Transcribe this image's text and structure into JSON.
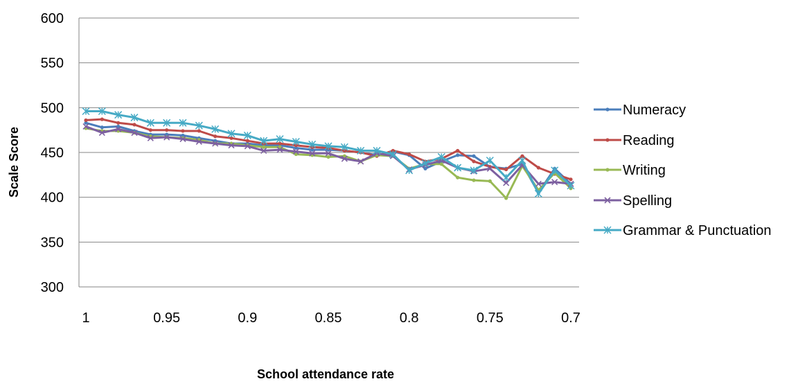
{
  "chart_data": {
    "type": "line",
    "xlabel": "School attendance rate",
    "ylabel": "Scale Score",
    "ylim": [
      300,
      600
    ],
    "yticks": [
      300,
      350,
      400,
      450,
      500,
      550,
      600
    ],
    "xlim": [
      1.0,
      0.7
    ],
    "xticks": [
      "1",
      "0.95",
      "0.9",
      "0.85",
      "0.8",
      "0.75",
      "0.7"
    ],
    "grid": "horizontal",
    "legend_position": "right",
    "x": [
      1.0,
      0.99,
      0.98,
      0.97,
      0.96,
      0.95,
      0.94,
      0.93,
      0.92,
      0.91,
      0.9,
      0.89,
      0.88,
      0.87,
      0.86,
      0.85,
      0.84,
      0.83,
      0.82,
      0.81,
      0.8,
      0.79,
      0.78,
      0.77,
      0.76,
      0.75,
      0.74,
      0.73,
      0.72,
      0.71,
      0.7
    ],
    "series": [
      {
        "name": "Numeracy",
        "color": "#4A7EBB",
        "marker": "dot",
        "values": [
          483,
          478,
          479,
          474,
          470,
          470,
          469,
          466,
          463,
          460,
          460,
          458,
          458,
          455,
          453,
          453,
          452,
          450,
          447,
          451,
          447,
          432,
          440,
          447,
          446,
          434,
          432,
          437,
          405,
          432,
          415
        ]
      },
      {
        "name": "Reading",
        "color": "#BE4B48",
        "marker": "dot",
        "values": [
          486,
          487,
          483,
          481,
          475,
          475,
          474,
          474,
          468,
          466,
          463,
          460,
          460,
          458,
          456,
          455,
          452,
          450,
          446,
          452,
          448,
          440,
          443,
          452,
          440,
          434,
          431,
          446,
          433,
          426,
          420
        ]
      },
      {
        "name": "Writing",
        "color": "#98B954",
        "marker": "dot",
        "values": [
          477,
          474,
          474,
          472,
          468,
          467,
          466,
          464,
          460,
          460,
          458,
          456,
          456,
          448,
          447,
          445,
          446,
          440,
          447,
          446,
          432,
          437,
          437,
          422,
          419,
          418,
          399,
          435,
          408,
          427,
          410
        ]
      },
      {
        "name": "Spelling",
        "color": "#7D60A0",
        "marker": "x",
        "values": [
          479,
          472,
          476,
          472,
          466,
          467,
          465,
          462,
          460,
          458,
          457,
          452,
          453,
          451,
          449,
          449,
          443,
          440,
          449,
          446,
          431,
          436,
          441,
          433,
          429,
          432,
          416,
          436,
          415,
          417,
          415
        ]
      },
      {
        "name": "Grammar & Punctuation",
        "color": "#46AAC5",
        "marker": "star",
        "values": [
          496,
          496,
          492,
          489,
          483,
          483,
          483,
          480,
          476,
          471,
          469,
          463,
          465,
          462,
          459,
          457,
          456,
          452,
          452,
          448,
          430,
          438,
          445,
          433,
          430,
          441,
          422,
          441,
          404,
          430,
          413
        ]
      }
    ]
  }
}
